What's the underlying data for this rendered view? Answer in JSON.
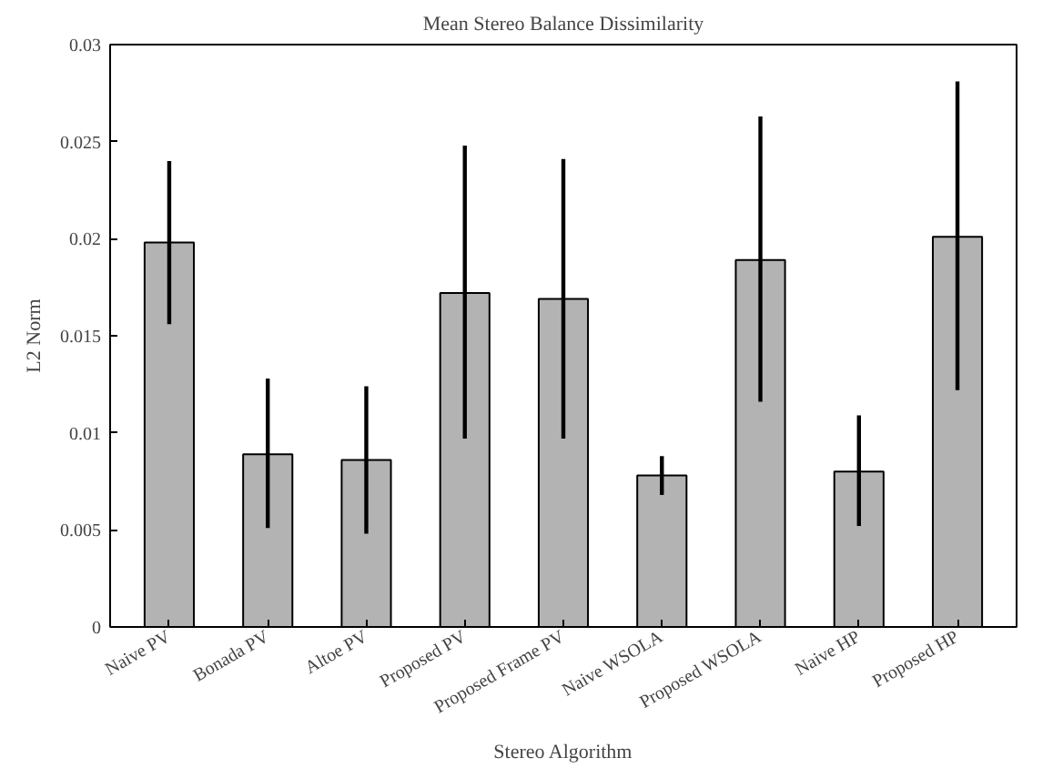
{
  "chart_data": {
    "type": "bar",
    "title": "Mean Stereo Balance Dissimilarity",
    "xlabel": "Stereo Algorithm",
    "ylabel": "L2 Norm",
    "categories": [
      "Naive PV",
      "Bonada PV",
      "Altoe PV",
      "Proposed PV",
      "Proposed Frame PV",
      "Naive WSOLA",
      "Proposed WSOLA",
      "Naive HP",
      "Proposed HP"
    ],
    "values": [
      0.0198,
      0.0089,
      0.0086,
      0.0172,
      0.0169,
      0.0078,
      0.0189,
      0.008,
      0.0201
    ],
    "errors": [
      [
        0.0156,
        0.024
      ],
      [
        0.0051,
        0.0128
      ],
      [
        0.0048,
        0.0124
      ],
      [
        0.0097,
        0.0248
      ],
      [
        0.0097,
        0.0241
      ],
      [
        0.0068,
        0.0088
      ],
      [
        0.0116,
        0.0263
      ],
      [
        0.0052,
        0.0109
      ],
      [
        0.0122,
        0.0281
      ]
    ],
    "color": "#b3b3b3",
    "ylim": [
      0,
      0.03
    ],
    "yticks": [
      0,
      0.005,
      0.01,
      0.015,
      0.02,
      0.025,
      0.03
    ],
    "grid": false
  }
}
